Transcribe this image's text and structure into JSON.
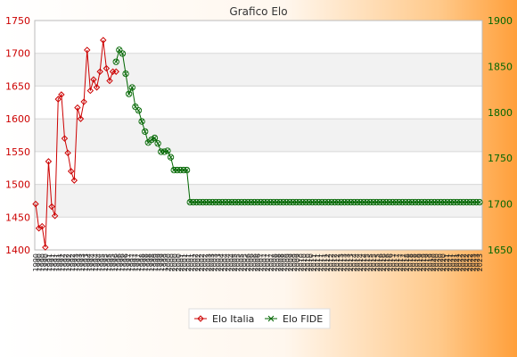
{
  "chart_data": {
    "type": "line",
    "title": "Grafico Elo",
    "xlabel": "",
    "ylabel": "",
    "y_left": {
      "ticks": [
        1400,
        1450,
        1500,
        1550,
        1600,
        1650,
        1700,
        1750
      ],
      "color": "#cc0000"
    },
    "y_right": {
      "ticks": [
        1650,
        1700,
        1750,
        1800,
        1850,
        1900
      ],
      "color": "#006600"
    },
    "x_tick_labels": [
      "1990",
      "1990",
      "1990",
      "1990",
      "1991",
      "1991",
      "1991",
      "1991",
      "1992",
      "1992",
      "1992",
      "1992",
      "1993",
      "1993",
      "1993",
      "1993",
      "1994",
      "1994",
      "1994",
      "1994",
      "1995",
      "1995",
      "1995",
      "1995",
      "1996",
      "1996",
      "1996",
      "1996",
      "1997",
      "1997",
      "1997",
      "1997",
      "1998",
      "1998",
      "1998",
      "1998",
      "1999",
      "1999",
      "1999",
      "1999",
      "2000",
      "2000",
      "2000",
      "2000",
      "2001",
      "2001",
      "2001",
      "2001",
      "2002",
      "2002",
      "2002",
      "2002",
      "2003",
      "2003",
      "2003",
      "2003",
      "2004",
      "2004",
      "2004",
      "2004",
      "2005",
      "2005",
      "2005",
      "2005",
      "2006",
      "2006",
      "2006",
      "2006",
      "2007",
      "2007",
      "2007",
      "2007",
      "2008",
      "2008",
      "2008",
      "2008",
      "2009",
      "2009",
      "2009",
      "2009",
      "2010",
      "2010",
      "2010",
      "2010",
      "2011",
      "2011",
      "2011",
      "2011",
      "2012",
      "2012",
      "2012",
      "2012",
      "2013",
      "2013",
      "2013",
      "2013",
      "2014",
      "2014",
      "2014",
      "2014",
      "2015",
      "2015",
      "2015",
      "2015",
      "2016",
      "2016",
      "2016",
      "2016",
      "2017",
      "2017",
      "2017",
      "2017",
      "2018",
      "2018",
      "2018",
      "2018",
      "2019",
      "2019",
      "2019",
      "2019",
      "2020",
      "2020",
      "2020",
      "2020",
      "2021",
      "2021",
      "2021",
      "2021",
      "2022",
      "2022",
      "2022",
      "2022",
      "2023",
      "2023",
      "2023"
    ],
    "series": [
      {
        "name": "Elo Italia",
        "color": "#cc0000",
        "axis": "left",
        "values": [
          1470,
          1433,
          1436,
          1404,
          1535,
          1466,
          1452,
          1630,
          1637,
          1570,
          1548,
          1520,
          1506,
          1617,
          1600,
          1626,
          1705,
          1643,
          1660,
          1648,
          1672,
          1720,
          1677,
          1658,
          1672,
          1672
        ]
      },
      {
        "name": "Elo FIDE",
        "color": "#006600",
        "axis": "right",
        "start_index": 25,
        "values": [
          1855,
          1868,
          1864,
          1842,
          1820,
          1827,
          1806,
          1802,
          1790,
          1779,
          1767,
          1770,
          1772,
          1766,
          1757,
          1757,
          1758,
          1751,
          1737,
          1737,
          1737,
          1737,
          1737,
          1702,
          1702,
          1702,
          1702,
          1702,
          1702,
          1702,
          1702,
          1702,
          1702,
          1702,
          1702,
          1702,
          1702,
          1702,
          1702,
          1702,
          1702,
          1702,
          1702,
          1702,
          1702,
          1702,
          1702,
          1702,
          1702,
          1702,
          1702,
          1702,
          1702,
          1702,
          1702,
          1702,
          1702,
          1702,
          1702,
          1702,
          1702,
          1702,
          1702,
          1702,
          1702,
          1702,
          1702,
          1702,
          1702,
          1702,
          1702,
          1702,
          1702,
          1702,
          1702,
          1702,
          1702,
          1702,
          1702,
          1702,
          1702,
          1702,
          1702,
          1702,
          1702,
          1702,
          1702,
          1702,
          1702,
          1702,
          1702,
          1702,
          1702,
          1702,
          1702,
          1702,
          1702,
          1702,
          1702,
          1702,
          1702,
          1702,
          1702,
          1702,
          1702,
          1702,
          1702,
          1702,
          1702,
          1702,
          1702,
          1702,
          1702,
          1702
        ]
      }
    ],
    "legend": "bottom-center",
    "grid": true
  }
}
